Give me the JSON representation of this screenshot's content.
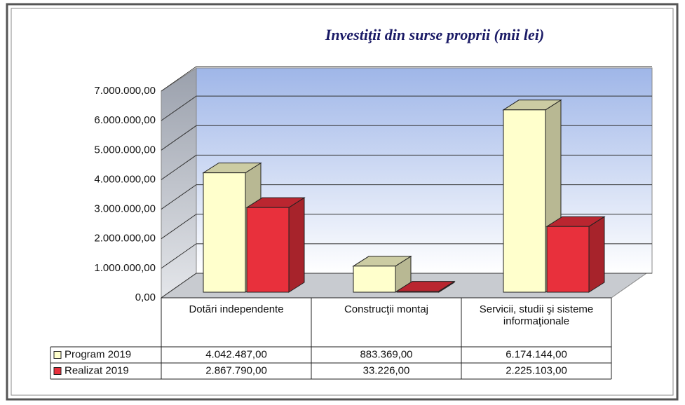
{
  "chart_data": {
    "type": "bar3d",
    "title": "Investiţii din surse proprii (mii lei)",
    "categories": [
      "Dotări independente",
      "Construcţii montaj",
      "Servicii, studii şi sisteme informaţionale"
    ],
    "series": [
      {
        "name": "Program 2019",
        "color": "#ffffcc",
        "values": [
          4042487,
          883369,
          6174144
        ],
        "value_labels": [
          "4.042.487,00",
          "883.369,00",
          "6.174.144,00"
        ]
      },
      {
        "name": "Realizat 2019",
        "color": "#e8303c",
        "values": [
          2867790,
          33226,
          2225103
        ],
        "value_labels": [
          "2.867.790,00",
          "33.226,00",
          "2.225.103,00"
        ]
      }
    ],
    "ylim": [
      0,
      7000000
    ],
    "yticks": [
      {
        "value": 0,
        "label": "0,00"
      },
      {
        "value": 1000000,
        "label": "1.000.000,00"
      },
      {
        "value": 2000000,
        "label": "2.000.000,00"
      },
      {
        "value": 3000000,
        "label": "3.000.000,00"
      },
      {
        "value": 4000000,
        "label": "4.000.000,00"
      },
      {
        "value": 5000000,
        "label": "5.000.000,00"
      },
      {
        "value": 6000000,
        "label": "6.000.000,00"
      },
      {
        "value": 7000000,
        "label": "7.000.000,00"
      }
    ],
    "grid": true,
    "legend": "table"
  }
}
